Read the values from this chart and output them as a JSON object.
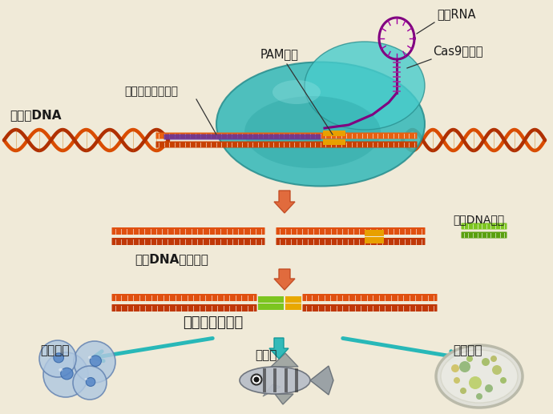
{
  "bg_color": "#f0ead8",
  "labels": {
    "guide_rna": "向导RNA",
    "cas9": "Cas9内切酶",
    "pam": "PAM序列",
    "genome_match": "与基因组序列匹配",
    "genome_dna": "基因组DNA",
    "double_strand_break": "双链DNA断裂修复",
    "donor_dna": "供体DNA分子",
    "genome_targeting": "基因组靶向修饰",
    "human_cell": "人体细胞",
    "zebrafish": "斑马鱼",
    "bacteria": "细菌细胞"
  },
  "colors": {
    "dna_orange": "#d94c00",
    "dna_dark": "#b83000",
    "cas9_teal": "#40c0c0",
    "cas9_dark": "#2a9898",
    "guide_rna": "#800080",
    "arrow_orange": "#e05828",
    "arrow_teal": "#28b8b8",
    "green_insert": "#7cc520",
    "yellow_insert": "#e8a800",
    "text_dark": "#1a1a1a",
    "cell_outer": "#b0c8e0",
    "cell_nucleus": "#5888c0",
    "petri_bg": "#e8e8e0"
  }
}
